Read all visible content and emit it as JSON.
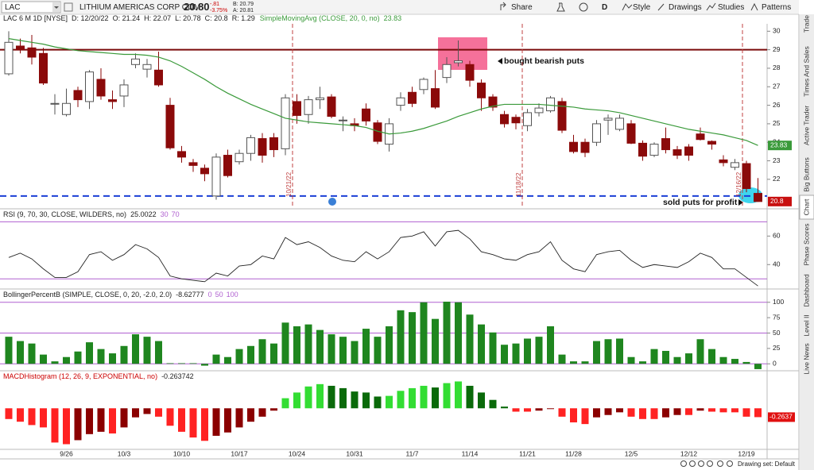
{
  "toolbar": {
    "symbol": "LAC",
    "company": "LITHIUM AMERICAS CORP COM",
    "last": "20.80",
    "change": "-.81",
    "change_pct": "-3.75%",
    "bid": "B: 20.79",
    "ask": "A: 20.81",
    "buttons": [
      "Share",
      "D",
      "Style",
      "Drawings",
      "Studies",
      "Patterns"
    ]
  },
  "header": {
    "fields": [
      "LAC 6 M 1D [NYSE]",
      "D: 12/20/22",
      "O: 21.24",
      "H: 22.07",
      "L: 20.78",
      "C: 20.8",
      "R: 1.29"
    ],
    "study": "SimpleMovingAvg (CLOSE, 20, 0, no)",
    "study_value": 23.83
  },
  "price_panel": {
    "type": "candlestick",
    "ylim": [
      20.45,
      30.4
    ],
    "yticks": [
      22,
      23,
      24,
      25,
      26,
      27,
      28,
      29,
      30
    ],
    "up_color": "#ffffff",
    "up_border": "#555555",
    "down_color": "#8b0a0a",
    "open": [
      27.7,
      29.2,
      29.1,
      28.8,
      26.1,
      25.5,
      26.8,
      26.2,
      27.4,
      26.3,
      26.5,
      28.2,
      27.95,
      27.9,
      26.0,
      23.5,
      22.9,
      22.6,
      21.1,
      23.3,
      22.95,
      23.4,
      24.2,
      24.25,
      23.65,
      26.2,
      25.5,
      26.3,
      26.45,
      25.2,
      25.0,
      25.8,
      25.05,
      23.9,
      26.0,
      26.7,
      26.85,
      26.9,
      27.5,
      28.3,
      28.2,
      27.2,
      26.45,
      25.5,
      25.35,
      24.9,
      25.6,
      25.7,
      26.2,
      24.0,
      24.0,
      24.0,
      25.2,
      24.7,
      25.0,
      23.95,
      23.3,
      24.2,
      23.6,
      23.75,
      24.45,
      24.05,
      23.05,
      22.65,
      22.85,
      21.24
    ],
    "high": [
      30.0,
      29.6,
      29.8,
      29.1,
      26.6,
      26.9,
      27.0,
      27.9,
      28.0,
      26.8,
      27.4,
      28.8,
      28.5,
      28.9,
      26.4,
      23.8,
      23.1,
      22.8,
      23.4,
      23.6,
      23.6,
      24.4,
      24.5,
      24.5,
      26.6,
      26.6,
      26.5,
      27.0,
      26.6,
      25.4,
      25.3,
      26.1,
      25.2,
      25.3,
      26.7,
      27.0,
      27.5,
      27.9,
      28.6,
      29.5,
      28.4,
      27.4,
      26.6,
      25.7,
      25.5,
      25.8,
      26.1,
      26.5,
      26.4,
      24.4,
      24.2,
      25.2,
      25.5,
      25.5,
      25.2,
      24.1,
      24.0,
      24.8,
      23.8,
      23.9,
      24.8,
      24.1,
      23.3,
      23.1,
      23.0,
      22.07
    ],
    "low": [
      27.6,
      28.8,
      28.2,
      27.1,
      25.5,
      25.4,
      25.9,
      25.8,
      26.3,
      25.8,
      25.9,
      28.0,
      27.5,
      27.0,
      23.6,
      22.9,
      22.4,
      21.9,
      20.9,
      22.1,
      22.8,
      23.0,
      22.9,
      23.2,
      23.3,
      25.0,
      25.0,
      25.8,
      25.3,
      24.6,
      24.6,
      24.9,
      23.9,
      23.5,
      25.7,
      25.9,
      26.6,
      25.8,
      27.2,
      28.1,
      27.0,
      25.7,
      25.7,
      24.8,
      24.7,
      24.6,
      25.4,
      25.6,
      24.5,
      23.4,
      23.2,
      23.8,
      24.4,
      24.6,
      23.9,
      23.0,
      23.2,
      23.4,
      23.1,
      23.0,
      24.1,
      23.6,
      22.7,
      22.5,
      21.3,
      20.78
    ],
    "close": [
      29.4,
      29.0,
      28.6,
      27.2,
      26.1,
      26.1,
      26.3,
      27.8,
      26.5,
      26.2,
      27.1,
      28.5,
      28.2,
      27.1,
      23.7,
      23.2,
      22.75,
      22.3,
      23.2,
      22.2,
      23.4,
      24.25,
      23.3,
      23.6,
      26.4,
      25.45,
      26.3,
      26.4,
      25.4,
      25.2,
      24.9,
      25.15,
      24.05,
      25.0,
      26.4,
      26.1,
      27.4,
      25.9,
      28.2,
      28.4,
      27.35,
      26.4,
      25.9,
      25.0,
      25.05,
      25.6,
      25.85,
      26.4,
      24.65,
      23.5,
      23.45,
      25.0,
      25.3,
      25.3,
      23.95,
      23.25,
      23.9,
      23.6,
      23.3,
      23.3,
      24.15,
      23.9,
      22.9,
      22.9,
      21.5,
      20.8
    ],
    "sma": {
      "color": "#3a9a3a",
      "values": [
        29.6,
        29.5,
        29.4,
        29.3,
        29.15,
        29.05,
        28.95,
        28.9,
        28.85,
        28.8,
        28.75,
        28.75,
        28.7,
        28.6,
        28.4,
        28.1,
        27.75,
        27.4,
        27.0,
        26.65,
        26.35,
        26.05,
        25.8,
        25.55,
        25.3,
        25.2,
        25.1,
        25.05,
        25.0,
        24.95,
        24.9,
        24.8,
        24.6,
        24.45,
        24.5,
        24.6,
        24.75,
        24.95,
        25.15,
        25.4,
        25.6,
        25.8,
        25.95,
        26.05,
        26.05,
        26.05,
        26.05,
        26.0,
        25.95,
        25.9,
        25.8,
        25.75,
        25.7,
        25.6,
        25.45,
        25.3,
        25.15,
        25.0,
        24.85,
        24.7,
        24.6,
        24.5,
        24.4,
        24.25,
        24.1,
        23.83
      ]
    },
    "levels": [
      {
        "value": 29,
        "color": "#7a0a0a",
        "style": "solid"
      },
      {
        "value": 21.1,
        "color": "#1a3fd6",
        "style": "dashed"
      }
    ],
    "last_price": 20.8,
    "date_lines": [
      "10/21/22",
      "11/18/22",
      "12/16/22"
    ],
    "annotations": [
      "bought bearish puts",
      "sold puts for profit"
    ]
  },
  "rsi_panel": {
    "type": "line",
    "label": "RSI (9, 70, 30, CLOSE, WILDERS, no)",
    "last": 25.0022,
    "levels": [
      30,
      70
    ],
    "level_color": "#b060d0",
    "color": "#222222",
    "ylim": [
      24,
      78
    ],
    "yticks": [
      40,
      60
    ],
    "values": [
      45,
      48,
      44,
      37,
      31,
      31,
      35,
      47,
      49,
      43,
      47,
      54,
      51,
      45,
      32,
      30,
      29,
      28,
      34,
      32,
      39,
      40,
      46,
      44,
      59,
      54,
      56,
      52,
      46,
      43,
      42,
      49,
      44,
      49,
      59,
      60,
      63,
      53,
      63,
      64,
      58,
      49,
      47,
      44,
      43,
      47,
      49,
      56,
      43,
      37,
      35,
      47,
      49,
      50,
      43,
      38,
      40,
      39,
      38,
      42,
      48,
      45,
      37,
      37,
      31,
      25.0022
    ]
  },
  "bollinger_panel": {
    "type": "bar",
    "label": "BollingerPercentB (SIMPLE, CLOSE, 0, 20, -2.0, 2.0)",
    "last": -8.62777,
    "levels": [
      0,
      50,
      100
    ],
    "level_color": "#b060d0",
    "color": "#1f861f",
    "ylim": [
      -10,
      110
    ],
    "yticks": [
      0,
      25,
      50,
      75,
      100
    ],
    "values": [
      44,
      37,
      33,
      15,
      4,
      11,
      20,
      35,
      24,
      17,
      29,
      48,
      44,
      37,
      1,
      1,
      1,
      -3,
      15,
      11,
      24,
      29,
      40,
      33,
      67,
      61,
      64,
      55,
      48,
      44,
      37,
      57,
      44,
      61,
      87,
      84,
      100,
      73,
      101,
      100,
      80,
      64,
      51,
      31,
      33,
      41,
      44,
      61,
      15,
      4,
      4,
      37,
      40,
      41,
      11,
      4,
      24,
      21,
      11,
      17,
      40,
      24,
      11,
      8,
      3,
      -8.62777
    ]
  },
  "macd_panel": {
    "type": "histogram",
    "label": "MACDHistogram (12, 26, 9, EXPONENTIAL, no)",
    "last": -0.263742,
    "badge": -0.2637,
    "colors": {
      "up_rising": "#33dd33",
      "up_falling": "#0a6a0a",
      "down_falling": "#ff2222",
      "down_rising": "#8b0000"
    },
    "ylim": [
      -1.2,
      1.0
    ],
    "values": [
      -0.32,
      -0.4,
      -0.5,
      -0.57,
      -1.02,
      -1.07,
      -0.95,
      -0.77,
      -0.7,
      -0.75,
      -0.57,
      -0.27,
      -0.17,
      -0.25,
      -0.52,
      -0.7,
      -0.87,
      -0.97,
      -0.82,
      -0.72,
      -0.57,
      -0.4,
      -0.25,
      -0.07,
      0.3,
      0.47,
      0.65,
      0.72,
      0.67,
      0.6,
      0.5,
      0.47,
      0.35,
      0.37,
      0.52,
      0.6,
      0.67,
      0.62,
      0.75,
      0.8,
      0.67,
      0.47,
      0.25,
      0.05,
      -0.1,
      -0.1,
      -0.07,
      -0.02,
      -0.25,
      -0.42,
      -0.47,
      -0.27,
      -0.2,
      -0.12,
      -0.25,
      -0.32,
      -0.32,
      -0.27,
      -0.2,
      -0.2,
      -0.07,
      -0.1,
      -0.12,
      -0.12,
      -0.25,
      -0.263742
    ]
  },
  "x_axis": {
    "categories": [
      null,
      null,
      null,
      null,
      null,
      "9/26",
      null,
      null,
      null,
      null,
      "10/3",
      null,
      null,
      null,
      null,
      "10/10",
      null,
      null,
      null,
      null,
      "10/17",
      null,
      null,
      null,
      null,
      "10/24",
      null,
      null,
      null,
      null,
      "10/31",
      null,
      null,
      null,
      null,
      "11/7",
      null,
      null,
      null,
      null,
      "11/14",
      null,
      null,
      null,
      null,
      "11/21",
      null,
      null,
      null,
      "11/28",
      null,
      null,
      null,
      null,
      "12/5",
      null,
      null,
      null,
      null,
      "12/12",
      null,
      null,
      null,
      null,
      "12/19",
      null
    ]
  },
  "side_tabs": [
    "Trade",
    "Times And Sales",
    "Active Trader",
    "Big Buttons",
    "Chart",
    "Phase Scores",
    "Dashboard",
    "Level II",
    "Live News"
  ],
  "footer": {
    "drawing_set": "Drawing set: Default"
  }
}
